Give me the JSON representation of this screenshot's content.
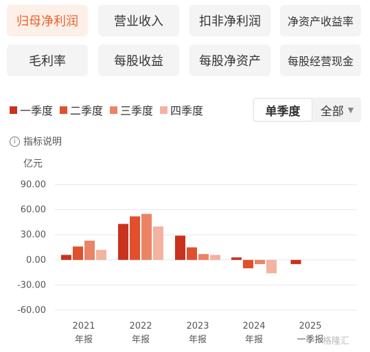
{
  "metrics": {
    "row1": [
      "归母净利润",
      "营业收入",
      "扣非净利润",
      "净资产收益率"
    ],
    "row2": [
      "毛利率",
      "每股收益",
      "每股净资产",
      "每股经营现金"
    ]
  },
  "period_toggle": {
    "selected": "单季度",
    "other": "全部"
  },
  "info_text": "指标说明",
  "colors": {
    "q1": "#c9321e",
    "q2": "#e0502c",
    "q3": "#eb8364",
    "q4": "#f3b3a0",
    "active_text": "#e8632f"
  },
  "watermark": "格隆汇",
  "chart_data": {
    "type": "bar",
    "ylabel": "亿元",
    "ylim": [
      -60,
      90
    ],
    "yticks": [
      "90.00",
      "60.00",
      "30.00",
      "0.00",
      "-30.00",
      "-60.00"
    ],
    "categories": [
      {
        "year": "2021",
        "sub": "年报"
      },
      {
        "year": "2022",
        "sub": "年报"
      },
      {
        "year": "2023",
        "sub": "年报"
      },
      {
        "year": "2024",
        "sub": "年报"
      },
      {
        "year": "2025",
        "sub": "一季报"
      }
    ],
    "series": [
      {
        "name": "一季度",
        "values": [
          6,
          43,
          29,
          3,
          -5
        ]
      },
      {
        "name": "二季度",
        "values": [
          16,
          52,
          15,
          -10,
          null
        ]
      },
      {
        "name": "三季度",
        "values": [
          23,
          55,
          7,
          -5,
          null
        ]
      },
      {
        "name": "四季度",
        "values": [
          12,
          40,
          6,
          -16,
          null
        ]
      }
    ]
  }
}
